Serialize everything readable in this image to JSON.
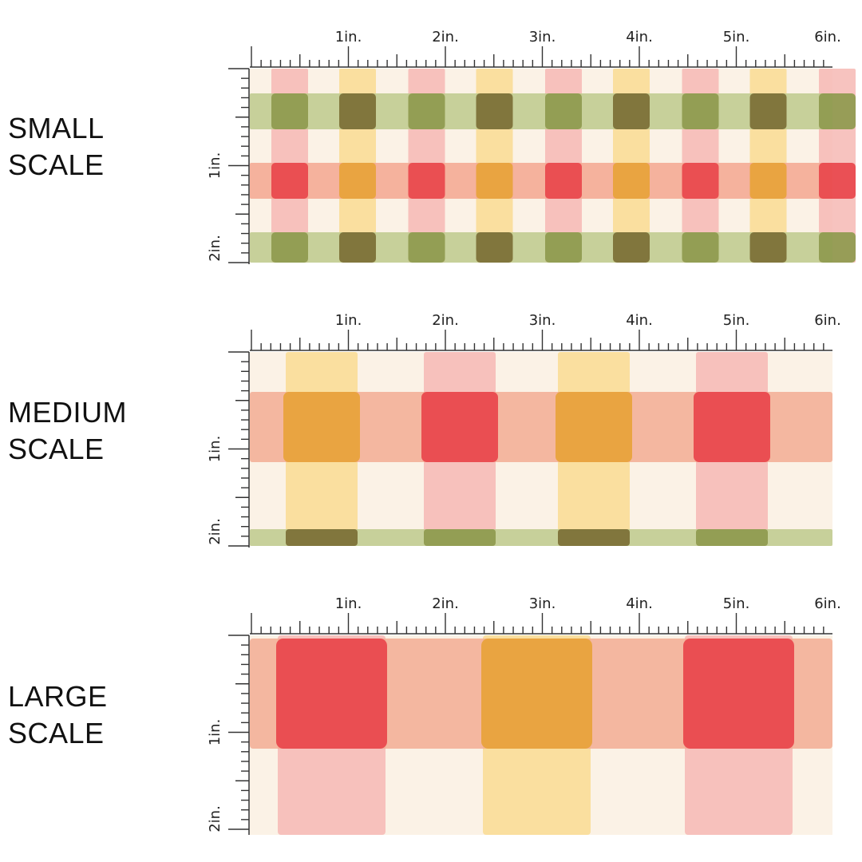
{
  "sections": [
    {
      "line1": "SMALL",
      "line2": "SCALE",
      "scale": "small"
    },
    {
      "line1": "MEDIUM",
      "line2": "SCALE",
      "scale": "medium"
    },
    {
      "line1": "LARGE",
      "line2": "SCALE",
      "scale": "large"
    }
  ],
  "ruler": {
    "top_labels": [
      "1in.",
      "2in.",
      "3in.",
      "4in.",
      "5in.",
      "6in."
    ],
    "left_labels": [
      "1in.",
      "2in."
    ]
  },
  "colors": {
    "background": "#fbf2e6",
    "pink_stripe": "#f6b8b4",
    "yellow_stripe": "#f9dc92",
    "green_stripe": "#bdca8c",
    "peach_stripe": "#f3a78f",
    "red_square": "#e8474c",
    "orange_square": "#e7a33b",
    "olive_square": "#8e9a4e",
    "brown_square": "#7b6f36",
    "ruler_ink": "#333333"
  }
}
